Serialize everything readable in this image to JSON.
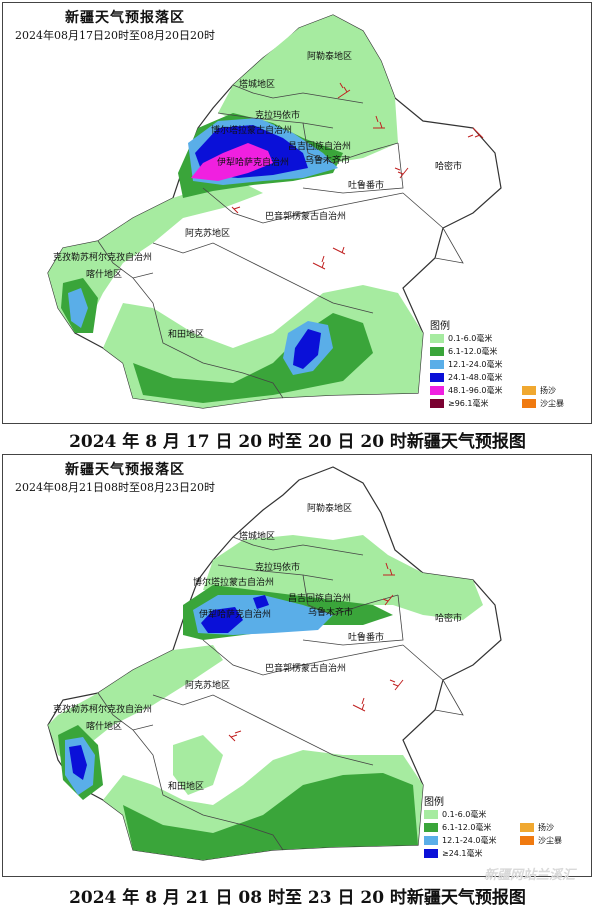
{
  "panel1": {
    "title": "新疆天气预报落区",
    "subtitle": "2024年08月17日20时至08月20日20时",
    "caption": "2024 年 8 月 17 日 20 时至 20 日 20 时新疆天气预报图",
    "legend_title": "图例",
    "legend": [
      {
        "label": "0.1-6.0毫米",
        "color": "#a6eba0"
      },
      {
        "label": "6.1-12.0毫米",
        "color": "#3aa53a"
      },
      {
        "label": "12.1-24.0毫米",
        "color": "#5aaee8"
      },
      {
        "label": "24.1-48.0毫米",
        "color": "#0a10d8"
      },
      {
        "label": "48.1-96.0毫米",
        "color": "#f020e0"
      },
      {
        "label": "≥96.1毫米",
        "color": "#7a0030"
      }
    ],
    "extra_legend": [
      {
        "label": "扬沙",
        "color": "#f0a830"
      },
      {
        "label": "沙尘暴",
        "color": "#f07a10"
      }
    ]
  },
  "panel2": {
    "title": "新疆天气预报落区",
    "subtitle": "2024年08月21日08时至08月23日20时",
    "caption": "2024 年 8 月 21 日 08 时至 23 日 20 时新疆天气预报图",
    "legend_title": "图例",
    "legend": [
      {
        "label": "0.1-6.0毫米",
        "color": "#a6eba0"
      },
      {
        "label": "6.1-12.0毫米",
        "color": "#3aa53a"
      },
      {
        "label": "12.1-24.0毫米",
        "color": "#5aaee8"
      },
      {
        "label": "≥24.1毫米",
        "color": "#0a10d8"
      }
    ],
    "extra_legend": [
      {
        "label": "扬沙",
        "color": "#f0a830"
      },
      {
        "label": "沙尘暴",
        "color": "#f07a10"
      }
    ]
  },
  "regions": {
    "aletai": "阿勒泰地区",
    "tacheng": "塔城地区",
    "kelamayi": "克拉玛依市",
    "bozhou": "博尔塔拉蒙古自治州",
    "changji": "昌吉回族自治州",
    "wulumuqi": "乌鲁木齐市",
    "yili": "伊犁哈萨克自治州",
    "tulufan": "吐鲁番市",
    "hami": "哈密市",
    "bayin": "巴音郭楞蒙古自治州",
    "akesu": "阿克苏地区",
    "kezhou": "克孜勒苏柯尔克孜自治州",
    "kashi": "喀什地区",
    "hetian": "和田地区"
  },
  "watermark": "新疆网站兰溪汇"
}
